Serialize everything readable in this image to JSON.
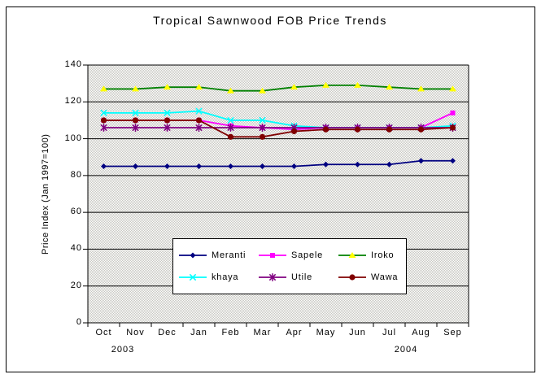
{
  "chart_data": {
    "type": "line",
    "title": "Tropical Sawnwood FOB Price Trends",
    "xlabel": "",
    "ylabel": "Price Index (Jan 1997=100)",
    "ylim": [
      0,
      140
    ],
    "y_ticks": [
      0,
      20,
      40,
      60,
      80,
      100,
      120,
      140
    ],
    "grid": true,
    "legend_position": "inside-bottom-center",
    "categories": [
      "Oct",
      "Nov",
      "Dec",
      "Jan",
      "Feb",
      "Mar",
      "Apr",
      "May",
      "Jun",
      "Jul",
      "Aug",
      "Sep"
    ],
    "year_labels": [
      "2003",
      "2004"
    ],
    "series": [
      {
        "name": "Meranti",
        "color": "#000080",
        "marker": "diamond",
        "marker_color": "#000080",
        "values": [
          85,
          85,
          85,
          85,
          85,
          85,
          85,
          86,
          86,
          86,
          88,
          88
        ]
      },
      {
        "name": "Sapele",
        "color": "#FF00FF",
        "marker": "square",
        "marker_color": "#FF00FF",
        "values": [
          110,
          110,
          110,
          110,
          107,
          106,
          105,
          106,
          106,
          106,
          106,
          114
        ]
      },
      {
        "name": "Iroko",
        "color": "#008000",
        "marker": "triangle",
        "marker_color": "#FFFF00",
        "values": [
          127,
          127,
          128,
          128,
          126,
          126,
          128,
          129,
          129,
          128,
          127,
          127
        ]
      },
      {
        "name": "khaya",
        "color": "#00FFFF",
        "marker": "x",
        "marker_color": "#00FFFF",
        "values": [
          114,
          114,
          114,
          115,
          110,
          110,
          107,
          106,
          106,
          106,
          106,
          107
        ]
      },
      {
        "name": "Utile",
        "color": "#800080",
        "marker": "star",
        "marker_color": "#800080",
        "values": [
          106,
          106,
          106,
          106,
          106,
          106,
          106,
          106,
          106,
          106,
          106,
          106
        ]
      },
      {
        "name": "Wawa",
        "color": "#800000",
        "marker": "circle",
        "marker_color": "#800000",
        "values": [
          110,
          110,
          110,
          110,
          101,
          101,
          104,
          105,
          105,
          105,
          105,
          106
        ]
      }
    ]
  }
}
